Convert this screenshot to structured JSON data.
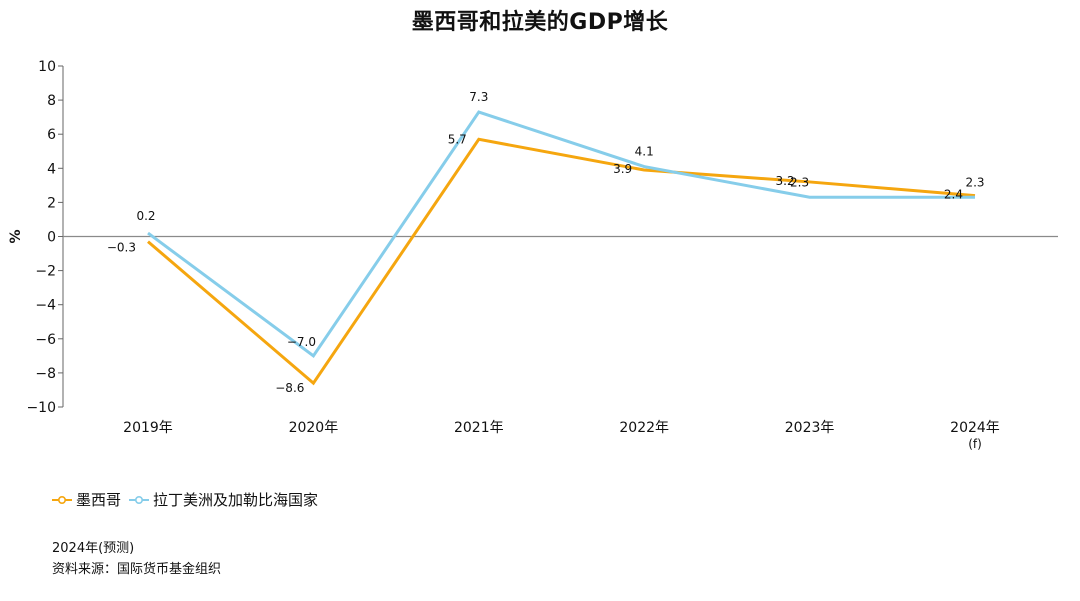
{
  "colors": {
    "mexico": "#f5a60f",
    "latam": "#86cdea",
    "axis": "#666666"
  },
  "chart_data": {
    "type": "line",
    "title": "墨西哥和拉美的GDP增长",
    "ylabel": "%",
    "xlabel": "",
    "categories": [
      "2019年",
      "2020年",
      "2021年",
      "2022年",
      "2023年",
      "2024年"
    ],
    "category_notes": [
      "",
      "",
      "",
      "",
      "",
      "(f)"
    ],
    "ylim": [
      -10,
      10
    ],
    "yticks": [
      10,
      8,
      6,
      4,
      2,
      0,
      -2,
      -4,
      -6,
      -8,
      -10
    ],
    "ytick_labels": [
      "10",
      "8",
      "6",
      "4",
      "2",
      "0",
      "−2",
      "−4",
      "−6",
      "−8",
      "−10"
    ],
    "series": [
      {
        "name": "墨西哥",
        "values": [
          -0.3,
          -8.6,
          5.7,
          3.9,
          3.2,
          2.4
        ],
        "labels": [
          "−0.3",
          "−8.6",
          "5.7",
          "3.9",
          "3.2",
          "2.4"
        ]
      },
      {
        "name": "拉丁美洲及加勒比海国家",
        "values": [
          0.2,
          -7.0,
          7.3,
          4.1,
          2.3,
          2.3
        ],
        "labels": [
          "0.2",
          "−7.0",
          "7.3",
          "4.1",
          "2.3",
          "2.3"
        ]
      }
    ],
    "legend_position": "bottom-left",
    "grid": false
  },
  "footnotes": {
    "forecast": "2024年(预测)",
    "source": "资料来源：国际货币基金组织"
  }
}
